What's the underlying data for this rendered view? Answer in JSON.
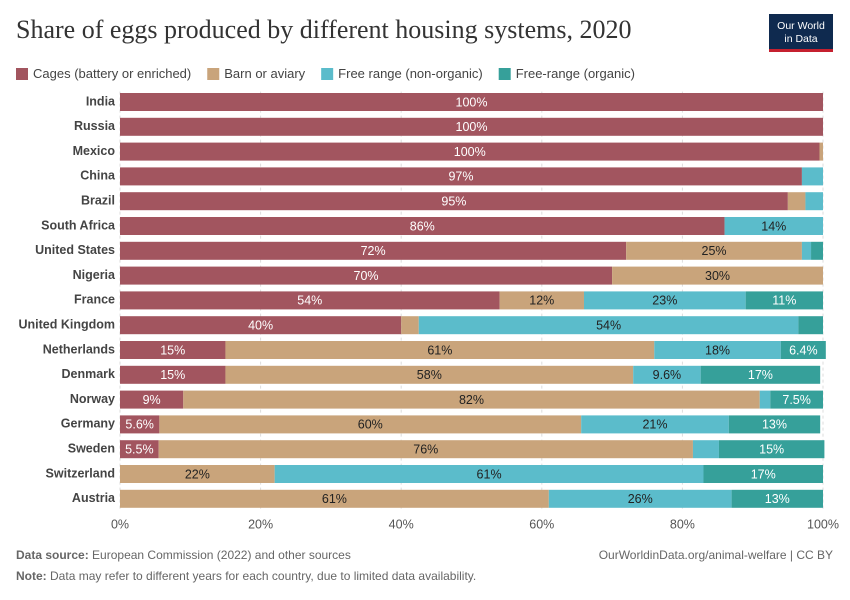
{
  "chart_data": {
    "type": "stacked-bar-horizontal",
    "title": "Share of eggs produced by different housing systems, 2020",
    "logo": [
      "Our World",
      "in Data"
    ],
    "categories": [
      "India",
      "Russia",
      "Mexico",
      "China",
      "Brazil",
      "South Africa",
      "United States",
      "Nigeria",
      "France",
      "United Kingdom",
      "Netherlands",
      "Denmark",
      "Norway",
      "Germany",
      "Sweden",
      "Switzerland",
      "Austria"
    ],
    "series": [
      {
        "name": "Cages (battery or enriched)",
        "color": "#a2555f",
        "label_color": "#ffffff",
        "values": [
          100,
          100,
          99.5,
          97,
          95,
          86,
          72,
          70,
          54,
          40,
          15,
          15,
          9,
          5.6,
          5.5,
          0,
          0
        ],
        "value_labels": [
          "100%",
          "100%",
          "100%",
          "97%",
          "95%",
          "86%",
          "72%",
          "70%",
          "54%",
          "40%",
          "15%",
          "15%",
          "9%",
          "5.6%",
          "5.5%",
          null,
          null
        ]
      },
      {
        "name": "Barn or aviary",
        "color": "#c9a47b",
        "label_color": "#222222",
        "values": [
          0,
          0,
          0.5,
          0,
          2.5,
          0,
          25,
          30,
          12,
          2.5,
          61,
          58,
          82,
          60,
          76,
          22,
          61
        ],
        "value_labels": [
          null,
          null,
          null,
          null,
          null,
          null,
          "25%",
          "30%",
          "12%",
          null,
          "61%",
          "58%",
          "82%",
          "60%",
          "76%",
          "22%",
          "61%"
        ]
      },
      {
        "name": "Free range (non-organic)",
        "color": "#5bbccb",
        "label_color": "#222222",
        "values": [
          0,
          0,
          0,
          3,
          2.5,
          14,
          1.3,
          0,
          23,
          54,
          18,
          9.6,
          1.5,
          21,
          3.7,
          61,
          26
        ],
        "value_labels": [
          null,
          null,
          null,
          null,
          null,
          "14%",
          null,
          null,
          "23%",
          "54%",
          "18%",
          "9.6%",
          null,
          "21%",
          null,
          "61%",
          "26%"
        ]
      },
      {
        "name": "Free-range (organic)",
        "color": "#36a09a",
        "label_color": "#ffffff",
        "values": [
          0,
          0,
          0,
          0,
          0,
          0,
          1.7,
          0,
          11,
          3.5,
          6.4,
          17,
          7.5,
          13,
          15,
          17,
          13
        ],
        "value_labels": [
          null,
          null,
          null,
          null,
          null,
          null,
          null,
          null,
          "11%",
          null,
          "6.4%",
          "17%",
          "7.5%",
          "13%",
          "15%",
          "17%",
          "13%"
        ]
      }
    ],
    "xlim": [
      0,
      100
    ],
    "xticks": [
      {
        "value": 0,
        "label": "0%"
      },
      {
        "value": 20,
        "label": "20%"
      },
      {
        "value": 40,
        "label": "40%"
      },
      {
        "value": 60,
        "label": "60%"
      },
      {
        "value": 80,
        "label": "80%"
      },
      {
        "value": 100,
        "label": "100%"
      }
    ],
    "grid": true,
    "source_label": "Data source:",
    "source": "European Commission (2022) and other sources",
    "url": "OurWorldinData.org/animal-welfare | CC BY",
    "note_label": "Note:",
    "note": "Data may refer to different years for each country, due to limited data availability."
  }
}
